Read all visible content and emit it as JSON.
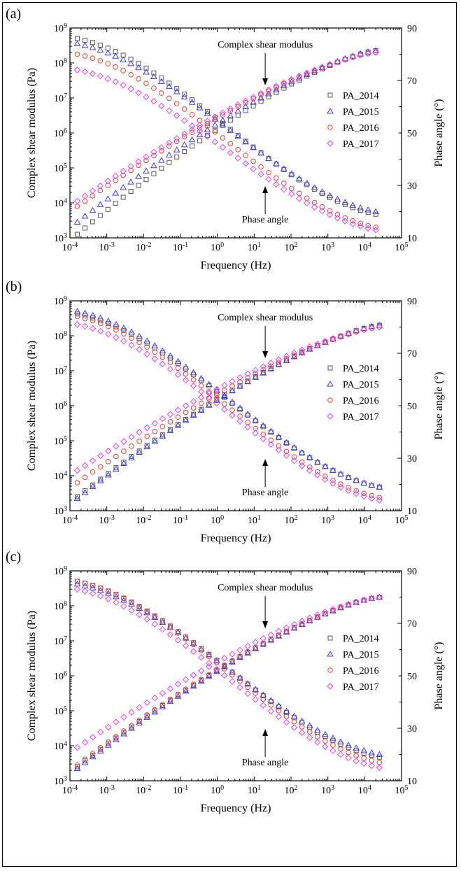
{
  "shared": {
    "xlabel": "Frequency (Hz)",
    "ylabel_left": "Complex shear modulus (Pa)",
    "ylabel_right": "Phase angle (°)",
    "annotation_top": "Complex shear modulus",
    "annotation_bottom": "Phase angle",
    "x_ticks": [
      "10^-4",
      "10^-3",
      "10^-2",
      "10^-1",
      "10^0",
      "10^1",
      "10^2",
      "10^3",
      "10^4",
      "10^5"
    ],
    "y_ticks_left": [
      "10^3",
      "10^4",
      "10^5",
      "10^6",
      "10^7",
      "10^8",
      "10^9"
    ],
    "y_ticks_right": [
      "10",
      "30",
      "50",
      "70",
      "90"
    ]
  },
  "colors": {
    "PA_2014": "#555555",
    "PA_2015": "#3b3bf0",
    "PA_2016": "#f03c2c",
    "PA_2017": "#f03cf0"
  },
  "chart_data": [
    {
      "panel_label": "(a)",
      "type": "scatter",
      "x_scale": "log",
      "xlim": [
        0.0001,
        100000
      ],
      "ylim_left": [
        1000,
        1000000000
      ],
      "ylim_right": [
        10,
        90
      ],
      "legend_position": "right",
      "series": [
        {
          "name": "PA_2014",
          "marker": "square",
          "modulus": {
            "x_log_start": -3.8,
            "x_log_end": 4.3,
            "y_log_start": 3.1,
            "y_log_end": 8.35
          },
          "phase": {
            "x_log_start": -3.8,
            "x_log_end": 4.3,
            "y_start": 86,
            "y_end": 19
          }
        },
        {
          "name": "PA_2015",
          "marker": "triangle",
          "modulus": {
            "x_log_start": -3.8,
            "x_log_end": 4.3,
            "y_log_start": 3.45,
            "y_log_end": 8.35
          },
          "phase": {
            "x_log_start": -3.8,
            "x_log_end": 4.3,
            "y_start": 84,
            "y_end": 20
          }
        },
        {
          "name": "PA_2016",
          "marker": "circle",
          "modulus": {
            "x_log_start": -3.8,
            "x_log_end": 4.3,
            "y_log_start": 3.9,
            "y_log_end": 8.3
          },
          "phase": {
            "x_log_start": -3.8,
            "x_log_end": 4.3,
            "y_start": 80,
            "y_end": 14
          }
        },
        {
          "name": "PA_2017",
          "marker": "diamond",
          "modulus": {
            "x_log_start": -3.8,
            "x_log_end": 4.3,
            "y_log_start": 4.05,
            "y_log_end": 8.3
          },
          "phase": {
            "x_log_start": -3.8,
            "x_log_end": 4.3,
            "y_start": 74,
            "y_end": 13
          }
        }
      ]
    },
    {
      "panel_label": "(b)",
      "type": "scatter",
      "x_scale": "log",
      "xlim": [
        0.0001,
        100000
      ],
      "ylim_left": [
        1000,
        1000000000
      ],
      "ylim_right": [
        10,
        90
      ],
      "legend_position": "right",
      "series": [
        {
          "name": "PA_2014",
          "marker": "square",
          "modulus": {
            "x_log_start": -3.8,
            "x_log_end": 4.4,
            "y_log_start": 3.4,
            "y_log_end": 8.3
          },
          "phase": {
            "x_log_start": -3.8,
            "x_log_end": 4.4,
            "y_start": 85,
            "y_end": 19
          }
        },
        {
          "name": "PA_2015",
          "marker": "triangle",
          "modulus": {
            "x_log_start": -3.8,
            "x_log_end": 4.4,
            "y_log_start": 3.35,
            "y_log_end": 8.3
          },
          "phase": {
            "x_log_start": -3.8,
            "x_log_end": 4.4,
            "y_start": 86,
            "y_end": 19
          }
        },
        {
          "name": "PA_2016",
          "marker": "circle",
          "modulus": {
            "x_log_start": -3.8,
            "x_log_end": 4.4,
            "y_log_start": 3.8,
            "y_log_end": 8.25
          },
          "phase": {
            "x_log_start": -3.8,
            "x_log_end": 4.4,
            "y_start": 84,
            "y_end": 15
          }
        },
        {
          "name": "PA_2017",
          "marker": "diamond",
          "modulus": {
            "x_log_start": -3.8,
            "x_log_end": 4.4,
            "y_log_start": 4.15,
            "y_log_end": 8.25
          },
          "phase": {
            "x_log_start": -3.8,
            "x_log_end": 4.4,
            "y_start": 81,
            "y_end": 14
          }
        }
      ]
    },
    {
      "panel_label": "(c)",
      "type": "scatter",
      "x_scale": "log",
      "xlim": [
        0.0001,
        100000
      ],
      "ylim_left": [
        1000,
        1000000000
      ],
      "ylim_right": [
        10,
        90
      ],
      "legend_position": "right",
      "series": [
        {
          "name": "PA_2014",
          "marker": "square",
          "modulus": {
            "x_log_start": -3.8,
            "x_log_end": 4.4,
            "y_log_start": 3.4,
            "y_log_end": 8.25
          },
          "phase": {
            "x_log_start": -3.8,
            "x_log_end": 4.4,
            "y_start": 86,
            "y_end": 19
          }
        },
        {
          "name": "PA_2015",
          "marker": "triangle",
          "modulus": {
            "x_log_start": -3.8,
            "x_log_end": 4.4,
            "y_log_start": 3.35,
            "y_log_end": 8.25
          },
          "phase": {
            "x_log_start": -3.8,
            "x_log_end": 4.4,
            "y_start": 85,
            "y_end": 20
          }
        },
        {
          "name": "PA_2016",
          "marker": "circle",
          "modulus": {
            "x_log_start": -3.8,
            "x_log_end": 4.4,
            "y_log_start": 3.45,
            "y_log_end": 8.25
          },
          "phase": {
            "x_log_start": -3.8,
            "x_log_end": 4.4,
            "y_start": 86,
            "y_end": 17
          }
        },
        {
          "name": "PA_2017",
          "marker": "diamond",
          "modulus": {
            "x_log_start": -3.8,
            "x_log_end": 4.4,
            "y_log_start": 3.95,
            "y_log_end": 8.25
          },
          "phase": {
            "x_log_start": -3.8,
            "x_log_end": 4.4,
            "y_start": 83,
            "y_end": 15
          }
        }
      ]
    }
  ]
}
